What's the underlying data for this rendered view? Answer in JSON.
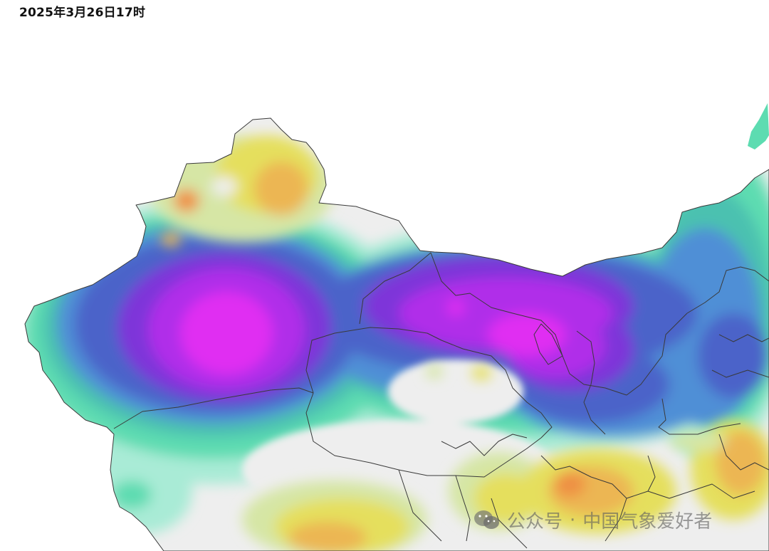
{
  "timestamp": "2025年3月26日17时",
  "watermark": {
    "platform": "公众号",
    "separator": "·",
    "account": "中国气象爱好者",
    "logo_icon": "wechat-icon"
  },
  "colors": {
    "land_base": "#eeeeee",
    "pale_green": "#a9ebd6",
    "green": "#5ddcb1",
    "teal": "#4cc1b0",
    "blue": "#4f8fd6",
    "indigo": "#4b64c9",
    "violet": "#7e34d9",
    "purple": "#b02ee9",
    "magenta": "#e02ff2",
    "light_yellow": "#d6e6a5",
    "yellow": "#e5df5d",
    "orange": "#ecb652",
    "red_orange": "#ef8f43",
    "boundary": "#3a3a3a"
  }
}
